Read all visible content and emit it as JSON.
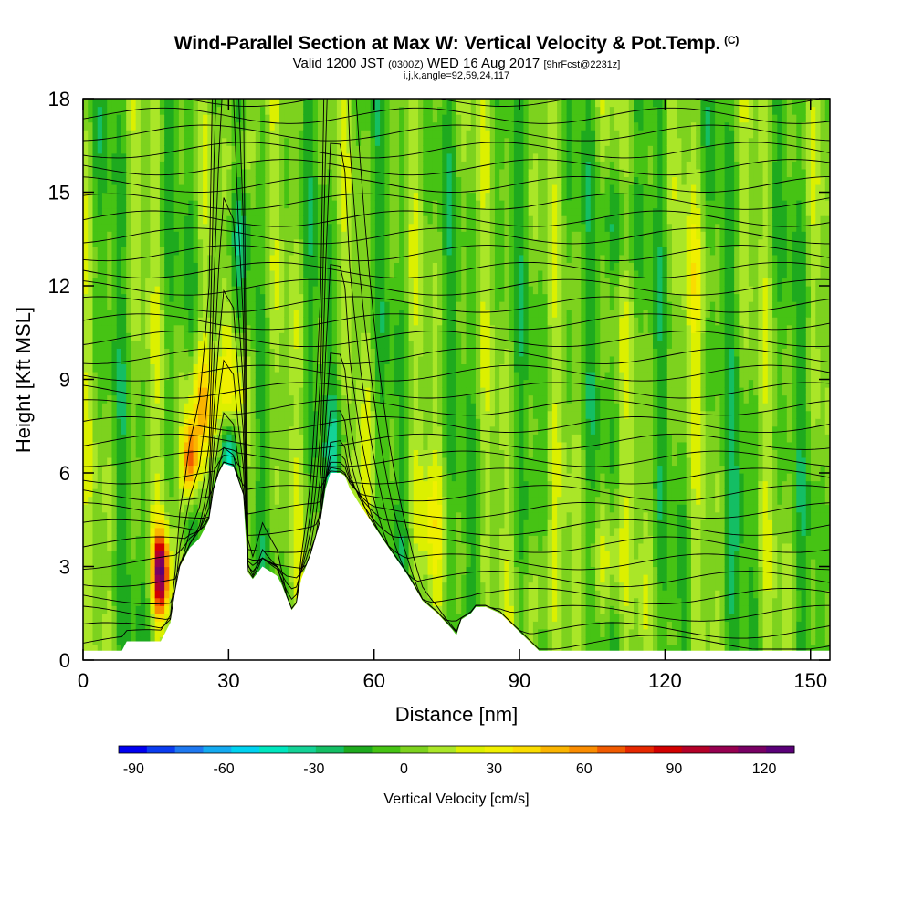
{
  "header": {
    "title": "Wind-Parallel Section at Max W: Vertical Velocity & Pot.Temp.",
    "copyright": "(C)",
    "valid_prefix": "Valid 1200 JST",
    "valid_utc": "(0300Z)",
    "valid_date": "WED 16 Aug 2017",
    "forecast": "[9hrFcst@2231z]",
    "indices": "i,j,k,angle=92,59,24,117"
  },
  "chart_data": {
    "type": "heatmap",
    "title": "Wind-Parallel Section at Max W: Vertical Velocity & Pot.Temp.",
    "xlabel": "Distance [nm]",
    "ylabel": "Height [Kft MSL]",
    "xlim": [
      0,
      154
    ],
    "ylim": [
      0,
      18
    ],
    "xticks": [
      0,
      30,
      60,
      90,
      120,
      150
    ],
    "yticks": [
      0,
      3,
      6,
      9,
      12,
      15,
      18
    ],
    "terrain": {
      "x": [
        0,
        8,
        9,
        12,
        16,
        18,
        19,
        20,
        22,
        24,
        26,
        27,
        28,
        29,
        31,
        33,
        34,
        35,
        37,
        40,
        41,
        42,
        43,
        44,
        45,
        47,
        49,
        50,
        51,
        52,
        53,
        54,
        55,
        57,
        60,
        63,
        67,
        70,
        73,
        76,
        77,
        78,
        80,
        81,
        83,
        86,
        88,
        90,
        92,
        94,
        96,
        97,
        154
      ],
      "y": [
        0.3,
        0.3,
        0.6,
        0.6,
        0.6,
        1.2,
        2.2,
        3.0,
        3.6,
        3.9,
        4.5,
        5.5,
        6.0,
        6.3,
        6.2,
        5.3,
        2.8,
        2.6,
        3.0,
        2.7,
        2.4,
        2.0,
        1.6,
        1.8,
        2.6,
        3.4,
        4.5,
        5.5,
        6.0,
        6.0,
        6.0,
        5.9,
        5.5,
        5.0,
        4.3,
        3.6,
        2.7,
        1.9,
        1.5,
        1.0,
        0.8,
        1.3,
        1.5,
        1.7,
        1.7,
        1.5,
        1.2,
        0.9,
        0.6,
        0.3,
        0.3,
        0.3,
        0.3
      ]
    },
    "vertical_velocity_cm_s": {
      "background": 0,
      "features": [
        {
          "x": 16,
          "y": 2.8,
          "peak": 110
        },
        {
          "x": 22,
          "y": 6.3,
          "peak": 75
        },
        {
          "x": 24,
          "y": 8.0,
          "peak": 45
        },
        {
          "x": 30,
          "y": 6.6,
          "peak": -70
        },
        {
          "x": 32,
          "y": 8.8,
          "peak": 30
        },
        {
          "x": 33,
          "y": 16.0,
          "peak": 25
        },
        {
          "x": 32,
          "y": 14.0,
          "peak": -25
        },
        {
          "x": 55,
          "y": 5.6,
          "peak": 25
        },
        {
          "x": 53,
          "y": 6.8,
          "peak": -25
        },
        {
          "x": 71,
          "y": 4.2,
          "peak": 20
        },
        {
          "x": 95,
          "y": 2.5,
          "peak": 25
        },
        {
          "x": 108,
          "y": 3.0,
          "peak": 25
        },
        {
          "x": 110,
          "y": 14.0,
          "peak": -20
        },
        {
          "x": 126,
          "y": 12.0,
          "peak": 20
        },
        {
          "x": 135,
          "y": 5.0,
          "peak": -15
        }
      ]
    },
    "potential_temperature_contours": {
      "count": 34,
      "labels_shown": true
    },
    "colorbar": {
      "title": "Vertical Velocity [cm/s]",
      "tick_labels": [
        "-90",
        "-60",
        "-30",
        "0",
        "30",
        "60",
        "90",
        "120"
      ],
      "tick_values": [
        -90,
        -60,
        -30,
        0,
        30,
        60,
        90,
        120
      ],
      "range": [
        -95,
        130
      ],
      "colors": [
        "#0000f0",
        "#0a3cf0",
        "#1e78f0",
        "#14aaf0",
        "#00d2f0",
        "#00e6be",
        "#14d296",
        "#14be64",
        "#1eaa1e",
        "#46c314",
        "#7dd21e",
        "#aae628",
        "#dcf000",
        "#f0f000",
        "#fadc00",
        "#fab400",
        "#fa8c00",
        "#f05a00",
        "#e62800",
        "#d20000",
        "#b40028",
        "#960050",
        "#780064",
        "#5a0078"
      ]
    }
  }
}
